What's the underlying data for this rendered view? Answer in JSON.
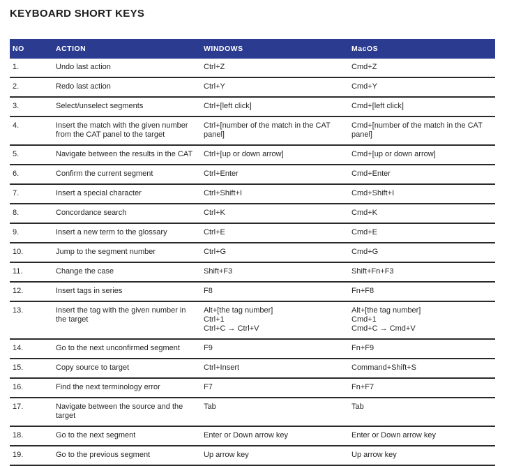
{
  "title": "KEYBOARD SHORT KEYS",
  "colors": {
    "header_bg": "#2b3b8f",
    "header_text": "#ffffff",
    "row_border": "#2a2a2a",
    "body_text": "#262626"
  },
  "table": {
    "columns": [
      "NO",
      "ACTION",
      "WINDOWS",
      "MacOS"
    ],
    "rows": [
      {
        "no": "1.",
        "action": "Undo last action",
        "windows": "Ctrl+Z",
        "macos": "Cmd+Z"
      },
      {
        "no": "2.",
        "action": "Redo last action",
        "windows": "Ctrl+Y",
        "macos": "Cmd+Y"
      },
      {
        "no": "3.",
        "action": "Select/unselect segments",
        "windows": "Ctrl+[left click]",
        "macos": "Cmd+[left click]"
      },
      {
        "no": "4.",
        "action": "Insert the match with the given number from the CAT panel to the target",
        "windows": "Ctrl+[number of the match in the CAT panel]",
        "macos": "Cmd+[number of the match in the CAT panel]"
      },
      {
        "no": "5.",
        "action": "Navigate between the results in the CAT",
        "windows": "Ctrl+[up or down arrow]",
        "macos": "Cmd+[up or down arrow]"
      },
      {
        "no": "6.",
        "action": "Confirm the current segment",
        "windows": "Ctrl+Enter",
        "macos": "Cmd+Enter"
      },
      {
        "no": "7.",
        "action": "Insert a special character",
        "windows": "Ctrl+Shift+I",
        "macos": "Cmd+Shift+I"
      },
      {
        "no": "8.",
        "action": "Concordance search",
        "windows": "Ctrl+K",
        "macos": "Cmd+K"
      },
      {
        "no": "9.",
        "action": "Insert a new term to the glossary",
        "windows": "Ctrl+E",
        "macos": "Cmd+E"
      },
      {
        "no": "10.",
        "action": "Jump to the segment number",
        "windows": "Ctrl+G",
        "macos": "Cmd+G"
      },
      {
        "no": "11.",
        "action": "Change the case",
        "windows": "Shift+F3",
        "macos": "Shift+Fn+F3"
      },
      {
        "no": "12.",
        "action": "Insert tags in series",
        "windows": "F8",
        "macos": "Fn+F8"
      },
      {
        "no": "13.",
        "action": "Insert the tag with the given number in the target",
        "windows": "Alt+[the tag number]\nCtrl+1\nCtrl+C → Ctrl+V",
        "macos": "Alt+[the tag number]\nCmd+1\nCmd+C → Cmd+V"
      },
      {
        "no": "14.",
        "action": "Go to the next unconfirmed segment",
        "windows": "F9",
        "macos": "Fn+F9"
      },
      {
        "no": "15.",
        "action": "Copy source to target",
        "windows": "Ctrl+Insert",
        "macos": "Command+Shift+S"
      },
      {
        "no": "16.",
        "action": "Find the next terminology error",
        "windows": "F7",
        "macos": "Fn+F7"
      },
      {
        "no": "17.",
        "action": "Navigate between the source and the target",
        "windows": "Tab",
        "macos": "Tab"
      },
      {
        "no": "18.",
        "action": "Go to the next segment",
        "windows": "Enter or Down arrow key",
        "macos": "Enter or Down arrow key"
      },
      {
        "no": "19.",
        "action": "Go to the previous segment",
        "windows": "Up arrow key",
        "macos": "Up arrow key"
      }
    ]
  }
}
